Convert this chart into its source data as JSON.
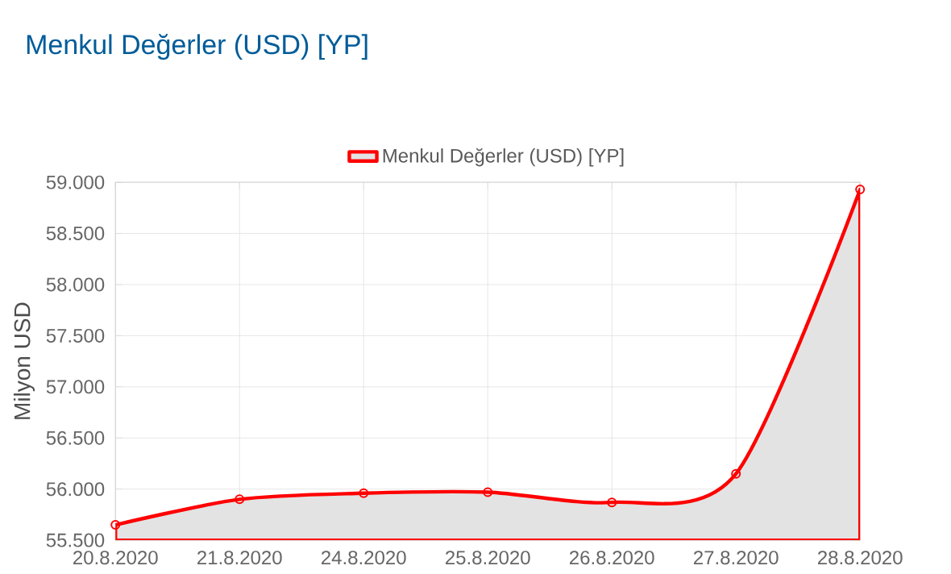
{
  "chart_data": {
    "type": "area",
    "title": "Menkul Değerler (USD) [YP]",
    "ylabel": "Milyon USD",
    "categories": [
      "20.8.2020",
      "21.8.2020",
      "24.8.2020",
      "25.8.2020",
      "26.8.2020",
      "27.8.2020",
      "28.8.2020"
    ],
    "series": [
      {
        "name": "Menkul Değerler (USD) [YP]",
        "color": "#ff0000",
        "values": [
          55650,
          55900,
          55960,
          55970,
          55870,
          56150,
          58930
        ]
      }
    ],
    "ylim": [
      55500,
      59000
    ],
    "yticks": [
      {
        "value": 55500,
        "label": "55.500"
      },
      {
        "value": 56000,
        "label": "56.000"
      },
      {
        "value": 56500,
        "label": "56.500"
      },
      {
        "value": 57000,
        "label": "57.000"
      },
      {
        "value": 57500,
        "label": "57.500"
      },
      {
        "value": 58000,
        "label": "58.000"
      },
      {
        "value": 58500,
        "label": "58.500"
      },
      {
        "value": 59000,
        "label": "59.000"
      }
    ],
    "grid": true,
    "legend": "top",
    "marker": "circle",
    "line_style": "solid"
  }
}
